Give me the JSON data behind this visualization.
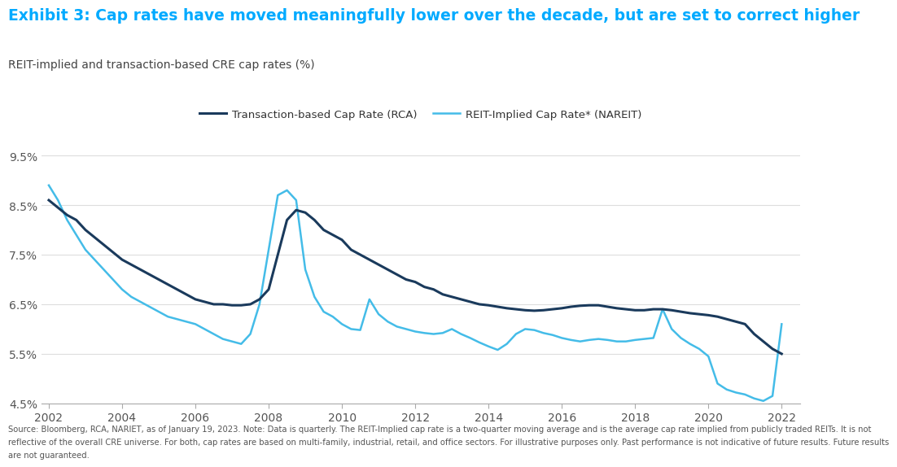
{
  "title": "Exhibit 3: Cap rates have moved meaningfully lower over the decade, but are set to correct higher",
  "subtitle": "REIT-implied and transaction-based CRE cap rates (%)",
  "title_color": "#00AAFF",
  "subtitle_color": "#444444",
  "footer": "Source: Bloomberg, RCA, NARIET, as of January 19, 2023. Note: Data is quarterly. The REIT-Implied cap rate is a two-quarter moving average and is the average cap rate implied from publicly traded REITs. It is not\nreflective of the overall CRE universe. For both, cap rates are based on multi-family, industrial, retail, and office sectors. For illustrative purposes only. Past performance is not indicative of future results. Future results\nare not guaranteed.",
  "ylim": [
    0.045,
    0.097
  ],
  "yticks": [
    0.045,
    0.055,
    0.065,
    0.075,
    0.085,
    0.095
  ],
  "ytick_labels": [
    "4.5%",
    "5.5%",
    "6.5%",
    "7.5%",
    "8.5%",
    "9.5%"
  ],
  "xticks": [
    2002,
    2004,
    2006,
    2008,
    2010,
    2012,
    2014,
    2016,
    2018,
    2020,
    2022
  ],
  "background_color": "#ffffff",
  "legend1_label": "Transaction-based Cap Rate (RCA)",
  "legend2_label": "REIT-Implied Cap Rate* (NAREIT)",
  "color_rca": "#1a3a5c",
  "color_nareit": "#44bce8",
  "transaction_data": [
    [
      2002.0,
      0.086
    ],
    [
      2002.25,
      0.0845
    ],
    [
      2002.5,
      0.083
    ],
    [
      2002.75,
      0.082
    ],
    [
      2003.0,
      0.08
    ],
    [
      2003.25,
      0.0785
    ],
    [
      2003.5,
      0.077
    ],
    [
      2003.75,
      0.0755
    ],
    [
      2004.0,
      0.074
    ],
    [
      2004.25,
      0.073
    ],
    [
      2004.5,
      0.072
    ],
    [
      2004.75,
      0.071
    ],
    [
      2005.0,
      0.07
    ],
    [
      2005.25,
      0.069
    ],
    [
      2005.5,
      0.068
    ],
    [
      2005.75,
      0.067
    ],
    [
      2006.0,
      0.066
    ],
    [
      2006.25,
      0.0655
    ],
    [
      2006.5,
      0.065
    ],
    [
      2006.75,
      0.065
    ],
    [
      2007.0,
      0.0648
    ],
    [
      2007.25,
      0.0648
    ],
    [
      2007.5,
      0.065
    ],
    [
      2007.75,
      0.066
    ],
    [
      2008.0,
      0.068
    ],
    [
      2008.25,
      0.075
    ],
    [
      2008.5,
      0.082
    ],
    [
      2008.75,
      0.084
    ],
    [
      2009.0,
      0.0835
    ],
    [
      2009.25,
      0.082
    ],
    [
      2009.5,
      0.08
    ],
    [
      2009.75,
      0.079
    ],
    [
      2010.0,
      0.078
    ],
    [
      2010.25,
      0.076
    ],
    [
      2010.5,
      0.075
    ],
    [
      2010.75,
      0.074
    ],
    [
      2011.0,
      0.073
    ],
    [
      2011.25,
      0.072
    ],
    [
      2011.5,
      0.071
    ],
    [
      2011.75,
      0.07
    ],
    [
      2012.0,
      0.0695
    ],
    [
      2012.25,
      0.0685
    ],
    [
      2012.5,
      0.068
    ],
    [
      2012.75,
      0.067
    ],
    [
      2013.0,
      0.0665
    ],
    [
      2013.25,
      0.066
    ],
    [
      2013.5,
      0.0655
    ],
    [
      2013.75,
      0.065
    ],
    [
      2014.0,
      0.0648
    ],
    [
      2014.25,
      0.0645
    ],
    [
      2014.5,
      0.0642
    ],
    [
      2014.75,
      0.064
    ],
    [
      2015.0,
      0.0638
    ],
    [
      2015.25,
      0.0637
    ],
    [
      2015.5,
      0.0638
    ],
    [
      2015.75,
      0.064
    ],
    [
      2016.0,
      0.0642
    ],
    [
      2016.25,
      0.0645
    ],
    [
      2016.5,
      0.0647
    ],
    [
      2016.75,
      0.0648
    ],
    [
      2017.0,
      0.0648
    ],
    [
      2017.25,
      0.0645
    ],
    [
      2017.5,
      0.0642
    ],
    [
      2017.75,
      0.064
    ],
    [
      2018.0,
      0.0638
    ],
    [
      2018.25,
      0.0638
    ],
    [
      2018.5,
      0.064
    ],
    [
      2018.75,
      0.064
    ],
    [
      2019.0,
      0.0638
    ],
    [
      2019.25,
      0.0635
    ],
    [
      2019.5,
      0.0632
    ],
    [
      2019.75,
      0.063
    ],
    [
      2020.0,
      0.0628
    ],
    [
      2020.25,
      0.0625
    ],
    [
      2020.5,
      0.062
    ],
    [
      2020.75,
      0.0615
    ],
    [
      2021.0,
      0.061
    ],
    [
      2021.25,
      0.059
    ],
    [
      2021.5,
      0.0575
    ],
    [
      2021.75,
      0.056
    ],
    [
      2022.0,
      0.055
    ]
  ],
  "nareit_data": [
    [
      2002.0,
      0.089
    ],
    [
      2002.25,
      0.086
    ],
    [
      2002.5,
      0.082
    ],
    [
      2002.75,
      0.079
    ],
    [
      2003.0,
      0.076
    ],
    [
      2003.25,
      0.074
    ],
    [
      2003.5,
      0.072
    ],
    [
      2003.75,
      0.07
    ],
    [
      2004.0,
      0.068
    ],
    [
      2004.25,
      0.0665
    ],
    [
      2004.5,
      0.0655
    ],
    [
      2004.75,
      0.0645
    ],
    [
      2005.0,
      0.0635
    ],
    [
      2005.25,
      0.0625
    ],
    [
      2005.5,
      0.062
    ],
    [
      2005.75,
      0.0615
    ],
    [
      2006.0,
      0.061
    ],
    [
      2006.25,
      0.06
    ],
    [
      2006.5,
      0.059
    ],
    [
      2006.75,
      0.058
    ],
    [
      2007.0,
      0.0575
    ],
    [
      2007.25,
      0.057
    ],
    [
      2007.5,
      0.059
    ],
    [
      2007.75,
      0.065
    ],
    [
      2008.0,
      0.076
    ],
    [
      2008.25,
      0.087
    ],
    [
      2008.5,
      0.088
    ],
    [
      2008.75,
      0.086
    ],
    [
      2009.0,
      0.072
    ],
    [
      2009.25,
      0.0665
    ],
    [
      2009.5,
      0.0635
    ],
    [
      2009.75,
      0.0625
    ],
    [
      2010.0,
      0.061
    ],
    [
      2010.25,
      0.06
    ],
    [
      2010.5,
      0.0598
    ],
    [
      2010.75,
      0.066
    ],
    [
      2011.0,
      0.063
    ],
    [
      2011.25,
      0.0615
    ],
    [
      2011.5,
      0.0605
    ],
    [
      2011.75,
      0.06
    ],
    [
      2012.0,
      0.0595
    ],
    [
      2012.25,
      0.0592
    ],
    [
      2012.5,
      0.059
    ],
    [
      2012.75,
      0.0592
    ],
    [
      2013.0,
      0.06
    ],
    [
      2013.25,
      0.059
    ],
    [
      2013.5,
      0.0582
    ],
    [
      2013.75,
      0.0573
    ],
    [
      2014.0,
      0.0565
    ],
    [
      2014.25,
      0.0558
    ],
    [
      2014.5,
      0.057
    ],
    [
      2014.75,
      0.059
    ],
    [
      2015.0,
      0.06
    ],
    [
      2015.25,
      0.0598
    ],
    [
      2015.5,
      0.0592
    ],
    [
      2015.75,
      0.0588
    ],
    [
      2016.0,
      0.0582
    ],
    [
      2016.25,
      0.0578
    ],
    [
      2016.5,
      0.0575
    ],
    [
      2016.75,
      0.0578
    ],
    [
      2017.0,
      0.058
    ],
    [
      2017.25,
      0.0578
    ],
    [
      2017.5,
      0.0575
    ],
    [
      2017.75,
      0.0575
    ],
    [
      2018.0,
      0.0578
    ],
    [
      2018.25,
      0.058
    ],
    [
      2018.5,
      0.0582
    ],
    [
      2018.75,
      0.064
    ],
    [
      2019.0,
      0.06
    ],
    [
      2019.25,
      0.0582
    ],
    [
      2019.5,
      0.057
    ],
    [
      2019.75,
      0.056
    ],
    [
      2020.0,
      0.0545
    ],
    [
      2020.25,
      0.049
    ],
    [
      2020.5,
      0.0478
    ],
    [
      2020.75,
      0.0472
    ],
    [
      2021.0,
      0.0468
    ],
    [
      2021.25,
      0.046
    ],
    [
      2021.5,
      0.0455
    ],
    [
      2021.75,
      0.0465
    ],
    [
      2022.0,
      0.061
    ]
  ]
}
